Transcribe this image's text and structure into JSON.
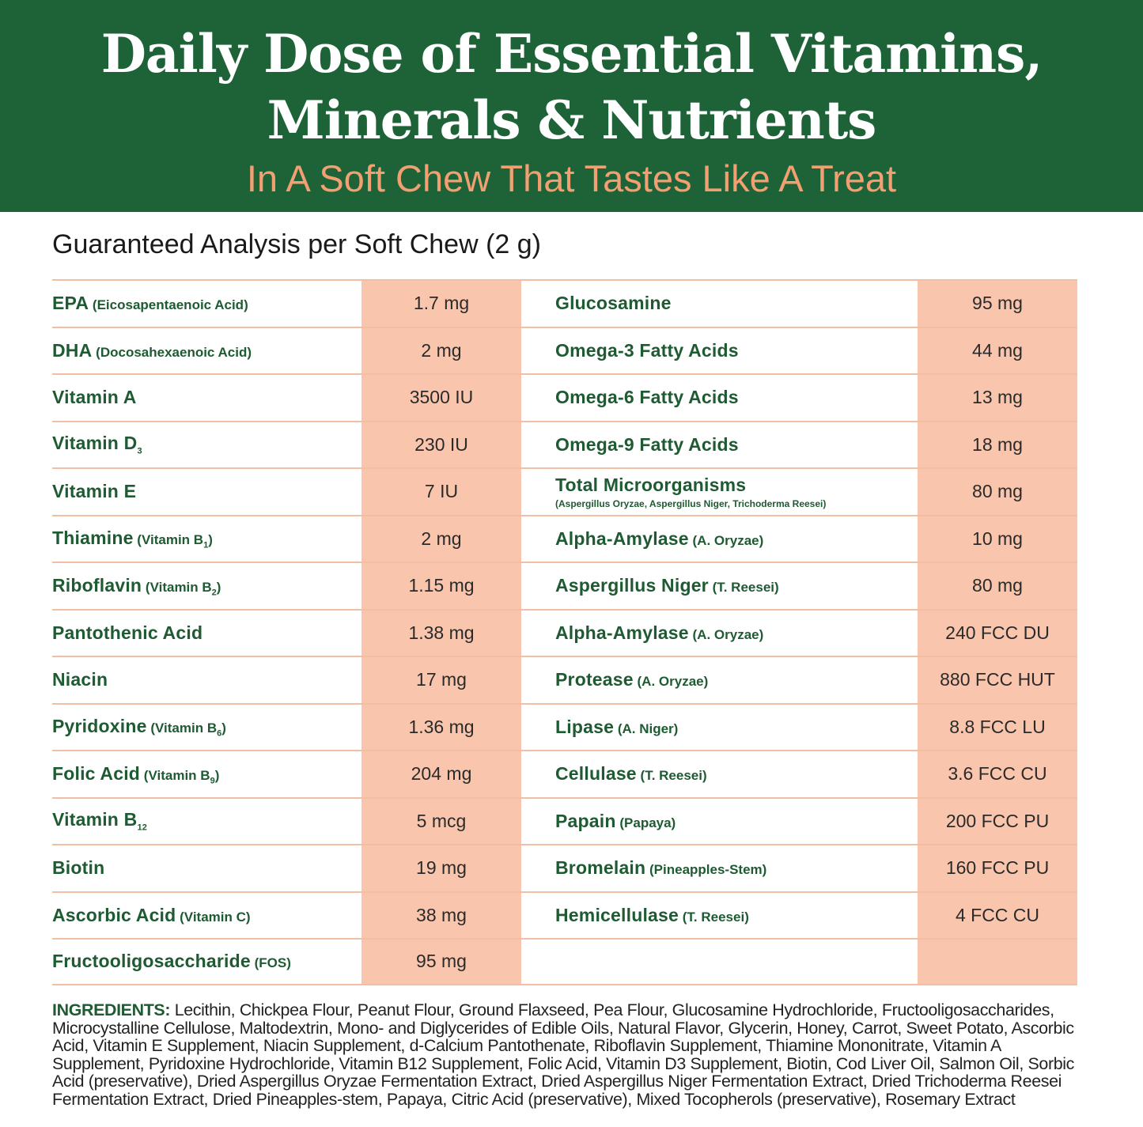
{
  "header": {
    "title_line1": "Daily Dose of Essential Vitamins,",
    "title_line2": "Minerals & Nutrients",
    "subtitle": "In A Soft Chew That Tastes Like A Treat"
  },
  "analysis_title": "Guaranteed Analysis per Soft Chew (2 g)",
  "colors": {
    "header_bg": "#1d6337",
    "subtitle": "#f2a072",
    "value_bg": "#f9c6ad",
    "label": "#1e5a32"
  },
  "left": [
    {
      "main": "EPA",
      "note": "(Eicosapentaenoic Acid)",
      "value": "1.7 mg"
    },
    {
      "main": "DHA",
      "note": "(Docosahexaenoic Acid)",
      "value": "2 mg"
    },
    {
      "main": "Vitamin A",
      "value": "3500 IU"
    },
    {
      "main": "Vitamin D",
      "main_sub": "3",
      "value": "230 IU"
    },
    {
      "main": "Vitamin E",
      "value": "7 IU"
    },
    {
      "main": "Thiamine",
      "note": "(Vitamin B",
      "note_sub": "1",
      "note_close": ")",
      "value": "2 mg"
    },
    {
      "main": "Riboflavin",
      "note": "(Vitamin B",
      "note_sub": "2",
      "note_close": ")",
      "value": "1.15 mg"
    },
    {
      "main": "Pantothenic Acid",
      "value": "1.38 mg"
    },
    {
      "main": "Niacin",
      "value": "17 mg"
    },
    {
      "main": "Pyridoxine",
      "note": "(Vitamin B",
      "note_sub": "6",
      "note_close": ")",
      "value": "1.36 mg"
    },
    {
      "main": "Folic Acid",
      "note": "(Vitamin B",
      "note_sub": "9",
      "note_close": ")",
      "value": "204 mg"
    },
    {
      "main": "Vitamin B",
      "main_sub": "12",
      "value": "5 mcg"
    },
    {
      "main": "Biotin",
      "value": "19 mg"
    },
    {
      "main": "Ascorbic Acid",
      "note": "(Vitamin C)",
      "value": "38 mg"
    },
    {
      "main": "Fructooligosaccharide",
      "note": "(FOS)",
      "value": "95 mg"
    }
  ],
  "right": [
    {
      "main": "Glucosamine",
      "value": "95 mg"
    },
    {
      "main": "Omega-3 Fatty Acids",
      "value": "44 mg"
    },
    {
      "main": "Omega-6 Fatty Acids",
      "value": "13 mg"
    },
    {
      "main": "Omega-9 Fatty Acids",
      "value": "18 mg"
    },
    {
      "main": "Total Microorganisms",
      "detail": "(Aspergillus Oryzae, Aspergillus Niger, Trichoderma Reesei)",
      "value": "80 mg"
    },
    {
      "main": "Alpha-Amylase",
      "note": "(A. Oryzae)",
      "value": "10 mg"
    },
    {
      "main": "Aspergillus Niger",
      "note": "(T. Reesei)",
      "value": "80 mg"
    },
    {
      "main": "Alpha-Amylase",
      "note": "(A. Oryzae)",
      "value": "240 FCC DU"
    },
    {
      "main": "Protease",
      "note": "(A. Oryzae)",
      "value": "880 FCC HUT"
    },
    {
      "main": "Lipase",
      "note": "(A. Niger)",
      "value": "8.8 FCC LU"
    },
    {
      "main": "Cellulase",
      "note": "(T. Reesei)",
      "value": "3.6 FCC CU"
    },
    {
      "main": "Papain",
      "note": "(Papaya)",
      "value": "200 FCC PU"
    },
    {
      "main": "Bromelain",
      "note": "(Pineapples-Stem)",
      "value": "160 FCC PU"
    },
    {
      "main": "Hemicellulase",
      "note": "(T. Reesei)",
      "value": "4 FCC CU"
    }
  ],
  "ingredients": {
    "label": "INGREDIENTS:",
    "text": "Lecithin, Chickpea Flour, Peanut Flour, Ground Flaxseed, Pea Flour, Glucosamine Hydrochloride, Fructooligosaccharides, Microcystalline Cellulose, Maltodextrin, Mono- and Diglycerides of Edible Oils, Natural Flavor, Glycerin, Honey, Carrot, Sweet Potato, Ascorbic Acid, Vitamin E Supplement, Niacin Supplement, d-Calcium Pantothenate, Riboflavin Supplement, Thiamine Mononitrate, Vitamin A Supplement, Pyridoxine Hydrochloride, Vitamin B12 Supplement, Folic Acid, Vitamin D3 Supplement, Biotin, Cod Liver Oil, Salmon Oil, Sorbic Acid (preservative), Dried Aspergillus Oryzae Fermentation Extract, Dried Aspergillus Niger Fermentation Extract, Dried Trichoderma Reesei Fermentation Extract, Dried Pineapples-stem, Papaya, Citric Acid (preservative), Mixed Tocopherols (preservative), Rosemary Extract"
  }
}
